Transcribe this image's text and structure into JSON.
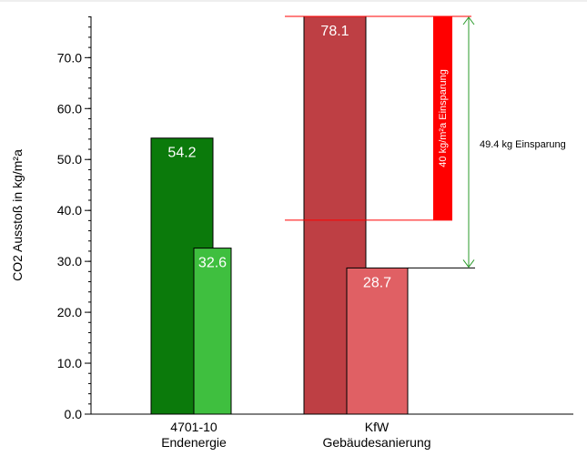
{
  "chart_data": {
    "type": "bar",
    "ylabel": "CO2 Ausstoß in kg/m²a",
    "ylim": [
      0,
      78.1
    ],
    "yticks": [
      "0.0",
      "10.0",
      "20.0",
      "30.0",
      "40.0",
      "50.0",
      "60.0",
      "70.0"
    ],
    "grid": false,
    "groups": [
      {
        "label_lines": [
          "4701-10",
          "Endenergie"
        ],
        "bars": [
          {
            "value": 54.2,
            "label": "54.2",
            "color": "#0b7a0b",
            "stroke": "#000000"
          },
          {
            "value": 32.6,
            "label": "32.6",
            "color": "#3fbf3f",
            "stroke": "#000000"
          }
        ]
      },
      {
        "label_lines": [
          "KfW",
          "Gebäudesanierung"
        ],
        "bars": [
          {
            "value": 78.1,
            "label": "78.1",
            "color": "#be3f44",
            "stroke": "#000000"
          },
          {
            "value": 28.7,
            "label": "28.7",
            "color": "#e06064",
            "stroke": "#000000"
          }
        ]
      }
    ],
    "annotations": {
      "saving_bar": {
        "from": 78.1,
        "to": 38.1,
        "label": "40 kg/m²a Einsparung",
        "color": "#ff0000"
      },
      "saving_arrow": {
        "from": 78.1,
        "to": 28.7,
        "label": "49.4 kg Einsparung",
        "color": "#2a9a2a"
      }
    }
  }
}
